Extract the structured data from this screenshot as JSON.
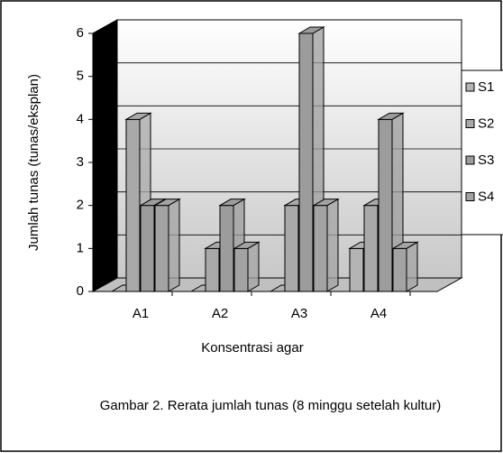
{
  "chart_data": {
    "type": "bar3d",
    "y_label": "Jumlah tunas (tunas/eksplan)",
    "x_label": "Konsentrasi agar",
    "caption": "Gambar 2. Rerata jumlah tunas (8 minggu setelah kultur)",
    "categories": [
      "A1",
      "A2",
      "A3",
      "A4"
    ],
    "series": [
      {
        "name": "S1",
        "color": "#b4b4b4",
        "values": [
          0,
          0,
          0,
          1
        ]
      },
      {
        "name": "S2",
        "color": "#a9a9a9",
        "values": [
          4,
          1,
          2,
          2
        ]
      },
      {
        "name": "S3",
        "color": "#9c9c9c",
        "values": [
          2,
          2,
          6,
          4
        ]
      },
      {
        "name": "S4",
        "color": "#a3a3a3",
        "values": [
          2,
          1,
          2,
          1
        ]
      }
    ],
    "ylim": [
      0,
      6
    ],
    "yticks": [
      0,
      1,
      2,
      3,
      4,
      5,
      6
    ],
    "grid": true
  }
}
